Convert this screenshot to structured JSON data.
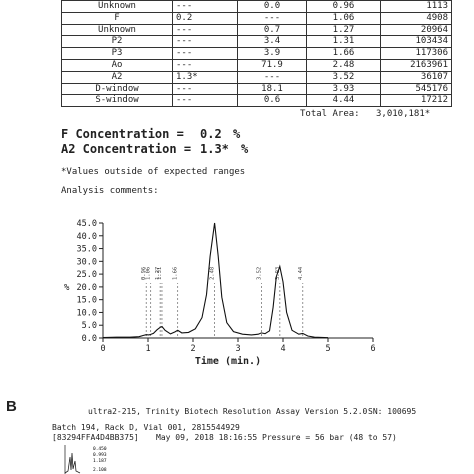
{
  "table": {
    "rows": [
      [
        "Unknown",
        "---",
        "0.0",
        "0.96",
        "1113"
      ],
      [
        "F",
        "0.2",
        "---",
        "1.06",
        "4908"
      ],
      [
        "Unknown",
        "---",
        "0.7",
        "1.27",
        "20964"
      ],
      [
        "P2",
        "---",
        "3.4",
        "1.31",
        "103434"
      ],
      [
        "P3",
        "---",
        "3.9",
        "1.66",
        "117306"
      ],
      [
        "Ao",
        "---",
        "71.9",
        "2.48",
        "2163961"
      ],
      [
        "A2",
        "1.3*",
        "---",
        "3.52",
        "36107"
      ],
      [
        "D-window",
        "---",
        "18.1",
        "3.93",
        "545176"
      ],
      [
        "S-window",
        "---",
        "0.6",
        "4.44",
        "17212"
      ]
    ]
  },
  "total_area": {
    "label": "Total Area:",
    "value": "3,010,181*"
  },
  "f_concentration": {
    "label": "F Concentration =",
    "value": "0.2",
    "unit": "%"
  },
  "a2_concentration": {
    "label": "A2 Concentration =",
    "value": "1.3*",
    "unit": "%"
  },
  "note": "*Values outside of expected ranges",
  "analysis_comments": "Analysis comments:",
  "chart_data": {
    "type": "line",
    "xlabel": "Time (min.)",
    "ylabel": "%",
    "xlim": [
      0,
      6
    ],
    "ylim": [
      0,
      45
    ],
    "x_ticks": [
      0,
      1,
      2,
      3,
      4,
      5,
      6
    ],
    "y_ticks": [
      "0.0",
      "5.0",
      "10.0",
      "15.0",
      "20.0",
      "25.0",
      "30.0",
      "35.0",
      "40.0",
      "45.0"
    ],
    "grid": false,
    "series": [
      {
        "x": [
          0,
          0.3,
          0.6,
          0.8,
          0.9,
          0.96,
          1.02,
          1.06,
          1.12,
          1.2,
          1.27,
          1.31,
          1.38,
          1.5,
          1.6,
          1.66,
          1.75,
          1.9,
          2.05,
          2.2,
          2.3,
          2.38,
          2.48,
          2.56,
          2.64,
          2.75,
          2.9,
          3.1,
          3.3,
          3.45,
          3.52,
          3.6,
          3.7,
          3.78,
          3.85,
          3.93,
          4.0,
          4.08,
          4.2,
          4.35,
          4.44,
          4.55,
          4.7,
          5.0
        ],
        "y": [
          0.2,
          0.3,
          0.3,
          0.5,
          1.0,
          1.3,
          1.2,
          1.4,
          1.8,
          3.2,
          4.2,
          4.5,
          3.0,
          1.6,
          2.4,
          3.0,
          2.0,
          2.2,
          3.6,
          8.0,
          17.0,
          32.0,
          45.0,
          32.0,
          16.0,
          6.0,
          2.5,
          1.5,
          1.2,
          1.5,
          2.0,
          1.7,
          2.8,
          12.0,
          24.0,
          28.0,
          22.0,
          10.0,
          3.0,
          1.5,
          1.8,
          0.8,
          0.3,
          0.1
        ]
      }
    ],
    "peak_labels": [
      {
        "x": 0.96,
        "text": "0.96"
      },
      {
        "x": 1.06,
        "text": "1.06"
      },
      {
        "x": 1.27,
        "text": "1.27"
      },
      {
        "x": 1.31,
        "text": "1.31"
      },
      {
        "x": 1.66,
        "text": "1.66"
      },
      {
        "x": 2.48,
        "text": "2.48"
      },
      {
        "x": 3.52,
        "text": "3.52"
      },
      {
        "x": 3.93,
        "text": "3.93"
      },
      {
        "x": 4.44,
        "text": "4.44"
      }
    ]
  },
  "panel_b": {
    "label": "B",
    "header": "ultra2-215, Trinity Biotech Resolution Assay Version 5.2.0",
    "sn": "SN: 100695",
    "batch": "Batch 194, Rack D, Vial 001, 2815544929",
    "id": "[83294FFA4D4BB375]",
    "date": "May 09, 2018 18:16:55",
    "pressure": "Pressure = 56 bar (48 to 57)",
    "mini_labels": [
      "0.450",
      "0.993",
      "1.187",
      "2.108"
    ]
  }
}
